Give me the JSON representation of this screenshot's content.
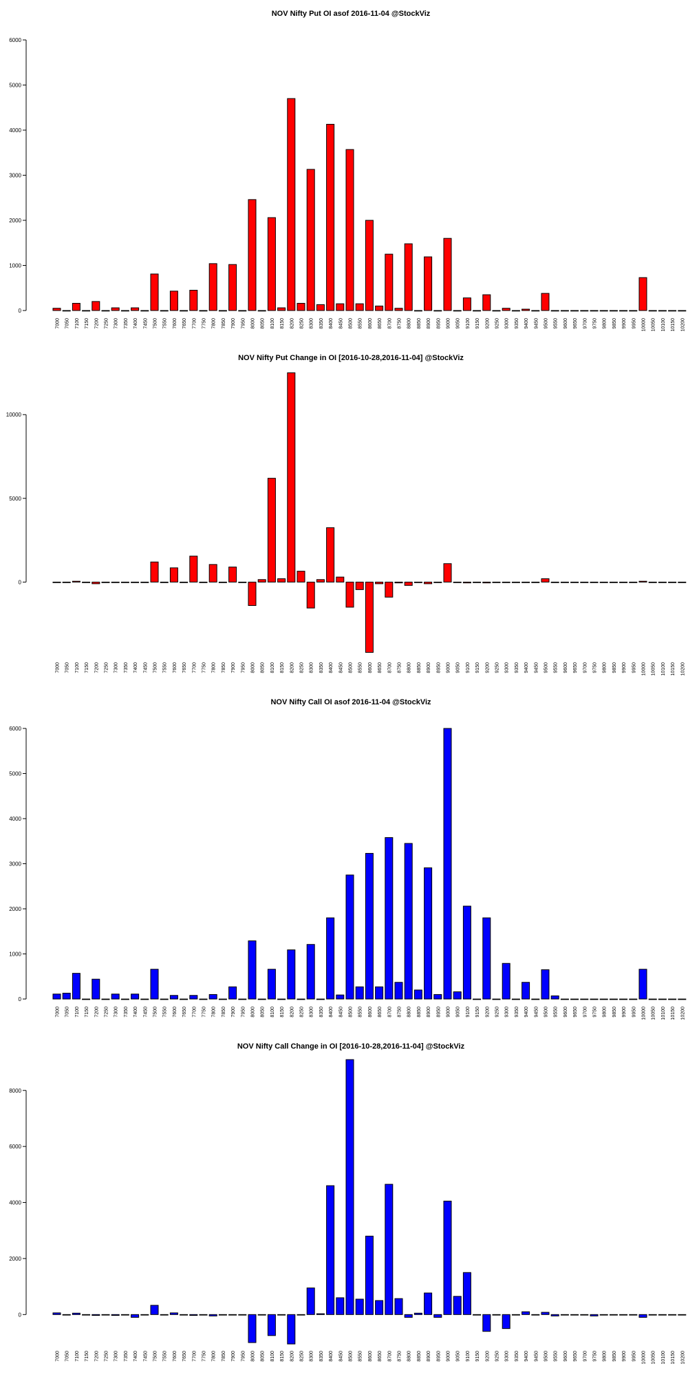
{
  "chart_data": [
    {
      "type": "bar",
      "title": "NOV Nifty Put OI asof 2016-11-04 @StockViz",
      "xlabel": "",
      "ylabel": "",
      "color": "#ff0000",
      "ylim": [
        0,
        6000
      ],
      "yticks": [
        0,
        1000,
        2000,
        3000,
        4000,
        5000,
        6000
      ],
      "categories": [
        "7000",
        "7050",
        "7100",
        "7150",
        "7200",
        "7250",
        "7300",
        "7350",
        "7400",
        "7450",
        "7500",
        "7550",
        "7600",
        "7650",
        "7700",
        "7750",
        "7800",
        "7850",
        "7900",
        "7950",
        "8000",
        "8050",
        "8100",
        "8150",
        "8200",
        "8250",
        "8300",
        "8350",
        "8400",
        "8450",
        "8500",
        "8550",
        "8600",
        "8650",
        "8700",
        "8750",
        "8800",
        "8850",
        "8900",
        "8950",
        "9000",
        "9050",
        "9100",
        "9150",
        "9200",
        "9250",
        "9300",
        "9350",
        "9400",
        "9450",
        "9500",
        "9550",
        "9600",
        "9650",
        "9700",
        "9750",
        "9800",
        "9850",
        "9900",
        "9950",
        "10000",
        "10050",
        "10100",
        "10150",
        "10200"
      ],
      "values": [
        50,
        0,
        160,
        0,
        200,
        0,
        60,
        0,
        60,
        0,
        810,
        0,
        430,
        0,
        450,
        0,
        1040,
        0,
        1020,
        0,
        2460,
        0,
        2060,
        60,
        4700,
        160,
        3130,
        130,
        4130,
        150,
        3570,
        150,
        2000,
        100,
        1250,
        50,
        1480,
        0,
        1190,
        0,
        1600,
        0,
        280,
        0,
        350,
        0,
        50,
        0,
        30,
        0,
        380,
        0,
        0,
        0,
        0,
        0,
        0,
        0,
        0,
        0,
        730,
        0,
        0,
        0,
        0
      ]
    },
    {
      "type": "bar",
      "title": "NOV Nifty Put Change in OI [2016-10-28,2016-11-04] @StockViz",
      "xlabel": "",
      "ylabel": "",
      "color": "#ff0000",
      "ylim": [
        -4300,
        12600
      ],
      "yticks": [
        0,
        5000,
        10000
      ],
      "categories": [
        "7000",
        "7050",
        "7100",
        "7150",
        "7200",
        "7250",
        "7300",
        "7350",
        "7400",
        "7450",
        "7500",
        "7550",
        "7600",
        "7650",
        "7700",
        "7750",
        "7800",
        "7850",
        "7900",
        "7950",
        "8000",
        "8050",
        "8100",
        "8150",
        "8200",
        "8250",
        "8300",
        "8350",
        "8400",
        "8450",
        "8500",
        "8550",
        "8600",
        "8650",
        "8700",
        "8750",
        "8800",
        "8850",
        "8900",
        "8950",
        "9000",
        "9050",
        "9100",
        "9150",
        "9200",
        "9250",
        "9300",
        "9350",
        "9400",
        "9450",
        "9500",
        "9550",
        "9600",
        "9650",
        "9700",
        "9750",
        "9800",
        "9850",
        "9900",
        "9950",
        "10000",
        "10050",
        "10100",
        "10150",
        "10200"
      ],
      "values": [
        0,
        0,
        50,
        0,
        -100,
        0,
        0,
        0,
        0,
        0,
        1200,
        0,
        850,
        0,
        1550,
        0,
        1050,
        0,
        900,
        0,
        -1400,
        150,
        6200,
        200,
        12500,
        650,
        -1550,
        150,
        3250,
        300,
        -1500,
        -450,
        -4200,
        -100,
        -900,
        -50,
        -200,
        0,
        -100,
        0,
        1100,
        0,
        -50,
        0,
        -50,
        0,
        0,
        0,
        0,
        0,
        200,
        0,
        0,
        0,
        0,
        0,
        0,
        0,
        0,
        0,
        50,
        0,
        0,
        0,
        0
      ]
    },
    {
      "type": "bar",
      "title": "NOV Nifty Call OI asof 2016-11-04 @StockViz",
      "xlabel": "",
      "ylabel": "",
      "color": "#0000ff",
      "ylim": [
        0,
        6000
      ],
      "yticks": [
        0,
        1000,
        2000,
        3000,
        4000,
        5000,
        6000
      ],
      "categories": [
        "7000",
        "7050",
        "7100",
        "7150",
        "7200",
        "7250",
        "7300",
        "7350",
        "7400",
        "7450",
        "7500",
        "7550",
        "7600",
        "7650",
        "7700",
        "7750",
        "7800",
        "7850",
        "7900",
        "7950",
        "8000",
        "8050",
        "8100",
        "8150",
        "8200",
        "8250",
        "8300",
        "8350",
        "8400",
        "8450",
        "8500",
        "8550",
        "8600",
        "8650",
        "8700",
        "8750",
        "8800",
        "8850",
        "8900",
        "8950",
        "9000",
        "9050",
        "9100",
        "9150",
        "9200",
        "9250",
        "9300",
        "9350",
        "9400",
        "9450",
        "9500",
        "9550",
        "9600",
        "9650",
        "9700",
        "9750",
        "9800",
        "9850",
        "9900",
        "9950",
        "10000",
        "10050",
        "10100",
        "10150",
        "10200"
      ],
      "values": [
        110,
        130,
        570,
        0,
        440,
        0,
        110,
        0,
        110,
        0,
        660,
        0,
        80,
        0,
        80,
        0,
        100,
        0,
        270,
        0,
        1290,
        0,
        660,
        0,
        1090,
        0,
        1210,
        0,
        1800,
        90,
        2750,
        270,
        3230,
        270,
        3580,
        370,
        3450,
        200,
        2910,
        100,
        6000,
        160,
        2060,
        0,
        1800,
        0,
        790,
        0,
        370,
        0,
        650,
        70,
        0,
        0,
        0,
        0,
        0,
        0,
        0,
        0,
        660,
        0,
        0,
        0,
        0
      ]
    },
    {
      "type": "bar",
      "title": "NOV Nifty Call Change in OI [2016-10-28,2016-11-04] @StockViz",
      "xlabel": "",
      "ylabel": "",
      "color": "#0000ff",
      "ylim": [
        -1000,
        9100
      ],
      "yticks": [
        0,
        2000,
        4000,
        6000,
        8000
      ],
      "categories": [
        "7000",
        "7050",
        "7100",
        "7150",
        "7200",
        "7250",
        "7300",
        "7350",
        "7400",
        "7450",
        "7500",
        "7550",
        "7600",
        "7650",
        "7700",
        "7750",
        "7800",
        "7850",
        "7900",
        "7950",
        "8000",
        "8050",
        "8100",
        "8150",
        "8200",
        "8250",
        "8300",
        "8350",
        "8400",
        "8450",
        "8500",
        "8550",
        "8600",
        "8650",
        "8700",
        "8750",
        "8800",
        "8850",
        "8900",
        "8950",
        "9000",
        "9050",
        "9100",
        "9150",
        "9200",
        "9250",
        "9300",
        "9350",
        "9400",
        "9450",
        "9500",
        "9550",
        "9600",
        "9650",
        "9700",
        "9750",
        "9800",
        "9850",
        "9900",
        "9950",
        "10000",
        "10050",
        "10100",
        "10150",
        "10200"
      ],
      "values": [
        60,
        0,
        50,
        0,
        -30,
        0,
        -30,
        0,
        -100,
        0,
        330,
        0,
        60,
        0,
        -30,
        0,
        -50,
        0,
        0,
        0,
        -1000,
        0,
        -750,
        0,
        -1050,
        0,
        950,
        30,
        4600,
        600,
        9100,
        550,
        2800,
        500,
        4650,
        570,
        -100,
        50,
        770,
        -100,
        4050,
        650,
        1500,
        0,
        -600,
        0,
        -500,
        0,
        100,
        0,
        80,
        -50,
        0,
        0,
        0,
        -50,
        0,
        0,
        0,
        0,
        -100,
        0,
        0,
        0,
        0
      ]
    }
  ]
}
